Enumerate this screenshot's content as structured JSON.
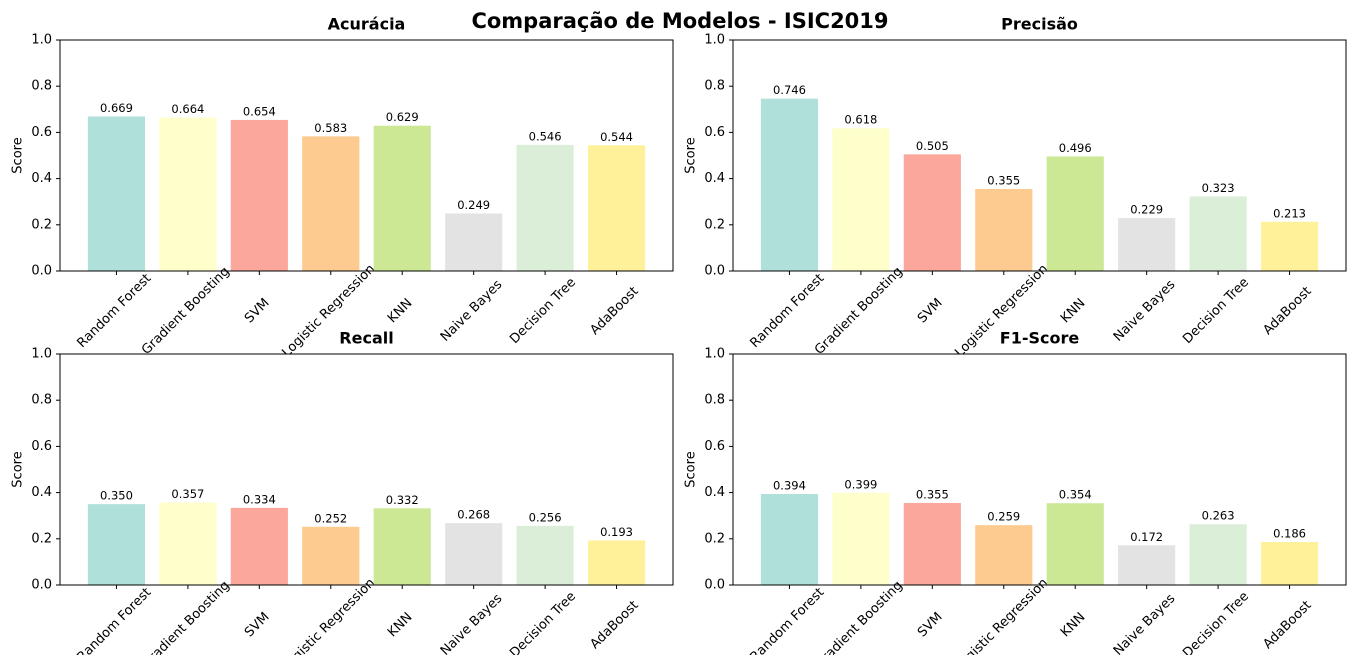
{
  "title": "Comparação de Modelos - ISIC2019",
  "chart_data": [
    {
      "type": "bar",
      "title": "Acurácia",
      "ylabel": "Score",
      "categories": [
        "Random Forest",
        "Gradient Boosting",
        "SVM",
        "Logistic Regression",
        "KNN",
        "Naive Bayes",
        "Decision Tree",
        "AdaBoost"
      ],
      "values": [
        0.669,
        0.664,
        0.654,
        0.583,
        0.629,
        0.249,
        0.546,
        0.544
      ],
      "value_labels": [
        "0.669",
        "0.664",
        "0.654",
        "0.583",
        "0.629",
        "0.249",
        "0.546",
        "0.544"
      ],
      "colors": [
        "#b0e0da",
        "#ffffcc",
        "#fca79b",
        "#fdca90",
        "#cce895",
        "#e3e3e3",
        "#dbefd8",
        "#fff09a"
      ],
      "ylim": [
        0,
        1
      ],
      "yticks": [
        {
          "value": 0,
          "label": "0.0"
        },
        0.2,
        0.4,
        0.6,
        0.8,
        {
          "value": 1,
          "label": "1.0"
        }
      ]
    },
    {
      "type": "bar",
      "title": "Precisão",
      "ylabel": "Score",
      "categories": [
        "Random Forest",
        "Gradient Boosting",
        "SVM",
        "Logistic Regression",
        "KNN",
        "Naive Bayes",
        "Decision Tree",
        "AdaBoost"
      ],
      "values": [
        0.746,
        0.618,
        0.505,
        0.355,
        0.496,
        0.229,
        0.323,
        0.213
      ],
      "value_labels": [
        "0.746",
        "0.618",
        "0.505",
        "0.355",
        "0.496",
        "0.229",
        "0.323",
        "0.213"
      ],
      "colors": [
        "#b0e0da",
        "#ffffcc",
        "#fca79b",
        "#fdca90",
        "#cce895",
        "#e3e3e3",
        "#dbefd8",
        "#fff09a"
      ],
      "ylim": [
        0,
        1
      ],
      "yticks": [
        {
          "value": 0,
          "label": "0.0"
        },
        0.2,
        0.4,
        0.6,
        0.8,
        {
          "value": 1,
          "label": "1.0"
        }
      ]
    },
    {
      "type": "bar",
      "title": "Recall",
      "ylabel": "Score",
      "categories": [
        "Random Forest",
        "Gradient Boosting",
        "SVM",
        "Logistic Regression",
        "KNN",
        "Naive Bayes",
        "Decision Tree",
        "AdaBoost"
      ],
      "values": [
        0.35,
        0.357,
        0.334,
        0.252,
        0.332,
        0.268,
        0.256,
        0.193
      ],
      "value_labels": [
        "0.350",
        "0.357",
        "0.334",
        "0.252",
        "0.332",
        "0.268",
        "0.256",
        "0.193"
      ],
      "colors": [
        "#b0e0da",
        "#ffffcc",
        "#fca79b",
        "#fdca90",
        "#cce895",
        "#e3e3e3",
        "#dbefd8",
        "#fff09a"
      ],
      "ylim": [
        0,
        1
      ],
      "yticks": [
        {
          "value": 0,
          "label": "0.0"
        },
        0.2,
        0.4,
        0.6,
        0.8,
        {
          "value": 1,
          "label": "1.0"
        }
      ]
    },
    {
      "type": "bar",
      "title": "F1-Score",
      "ylabel": "Score",
      "categories": [
        "Random Forest",
        "Gradient Boosting",
        "SVM",
        "Logistic Regression",
        "KNN",
        "Naive Bayes",
        "Decision Tree",
        "AdaBoost"
      ],
      "values": [
        0.394,
        0.399,
        0.355,
        0.259,
        0.354,
        0.172,
        0.263,
        0.186
      ],
      "value_labels": [
        "0.394",
        "0.399",
        "0.355",
        "0.259",
        "0.354",
        "0.172",
        "0.263",
        "0.186"
      ],
      "colors": [
        "#b0e0da",
        "#ffffcc",
        "#fca79b",
        "#fdca90",
        "#cce895",
        "#e3e3e3",
        "#dbefd8",
        "#fff09a"
      ],
      "ylim": [
        0,
        1
      ],
      "yticks": [
        {
          "value": 0,
          "label": "0.0"
        },
        0.2,
        0.4,
        0.6,
        0.8,
        {
          "value": 1,
          "label": "1.0"
        }
      ]
    }
  ]
}
